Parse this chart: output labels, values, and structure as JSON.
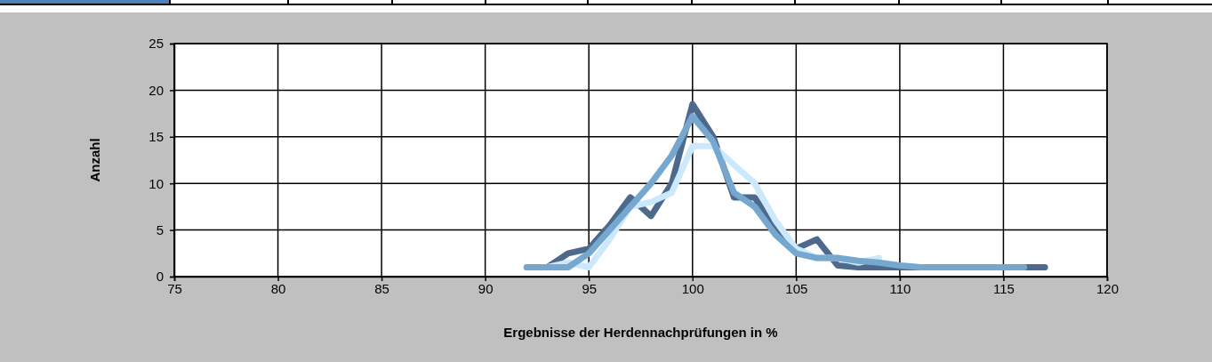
{
  "chart_data": {
    "type": "line",
    "xlabel": "Ergebnisse der Herdennachprüfungen in %",
    "ylabel": "Anzahl",
    "xlim": [
      75,
      120
    ],
    "xticks": [
      75,
      80,
      85,
      90,
      95,
      100,
      105,
      110,
      115,
      120
    ],
    "ylim": [
      0,
      25
    ],
    "yticks": [
      0,
      5,
      10,
      15,
      20,
      25
    ],
    "grid": true,
    "marker": "none",
    "line_style": "solid",
    "series": [
      {
        "color": "#4d6a8c",
        "x": [
          92,
          93,
          94,
          95,
          96,
          97,
          98,
          99,
          100,
          101,
          102,
          103,
          104,
          105,
          106,
          107,
          108,
          109,
          110,
          111,
          112,
          113,
          114,
          115,
          116,
          117
        ],
        "values": [
          1,
          1,
          2.5,
          3,
          5.5,
          8.5,
          6.5,
          10,
          18.5,
          15,
          8.5,
          8.5,
          5,
          3,
          4,
          1.2,
          1,
          1,
          1,
          1,
          1,
          1,
          1,
          1,
          1,
          1
        ]
      },
      {
        "color": "#cce8fc",
        "x": [
          92,
          93,
          94,
          95,
          96,
          97,
          98,
          99,
          100,
          101,
          102,
          103,
          104,
          105,
          106,
          107,
          108,
          109
        ],
        "values": [
          1,
          1,
          1.5,
          1,
          4,
          7.5,
          8,
          9,
          14,
          14,
          12,
          10,
          6,
          3,
          2,
          2,
          1.5,
          2
        ]
      },
      {
        "color": "#75a7cf",
        "x": [
          92,
          93,
          94,
          95,
          96,
          97,
          98,
          99,
          100,
          101,
          102,
          103,
          104,
          105,
          106,
          107,
          108,
          109,
          110,
          111,
          112,
          113,
          114,
          115,
          116
        ],
        "values": [
          1,
          1,
          1,
          2.5,
          5,
          7.5,
          10,
          13,
          17.2,
          14.5,
          9,
          7.5,
          4.5,
          2.5,
          2,
          2,
          1.7,
          1.5,
          1.2,
          1,
          1,
          1,
          1,
          1,
          1
        ]
      }
    ]
  }
}
